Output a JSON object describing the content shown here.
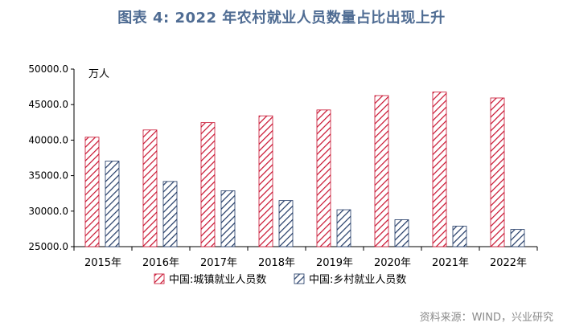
{
  "title": "图表 4:  2022 年农村就业人员数量占比出现上升",
  "source": "资料来源：WIND，兴业研究",
  "chart_data": {
    "type": "bar",
    "categories": [
      "2015年",
      "2016年",
      "2017年",
      "2018年",
      "2019年",
      "2020年",
      "2021年",
      "2022年"
    ],
    "series": [
      {
        "name": "中国:城镇就业人员数",
        "values": [
          40410,
          41428,
          42462,
          43419,
          44247,
          46271,
          46773,
          45931
        ],
        "color": "#c8102e",
        "pattern": "diagonal-hatch"
      },
      {
        "name": "中国:乡村就业人员数",
        "values": [
          37041,
          34176,
          32866,
          31490,
          30198,
          28793,
          27879,
          27420
        ],
        "color": "#1f3864",
        "pattern": "diagonal-hatch"
      }
    ],
    "yunit": "万人",
    "ylim": [
      25000,
      50000
    ],
    "yticks": [
      "25000.0",
      "30000.0",
      "35000.0",
      "40000.0",
      "45000.0",
      "50000.0"
    ],
    "legend_position": "bottom",
    "grid": false
  }
}
